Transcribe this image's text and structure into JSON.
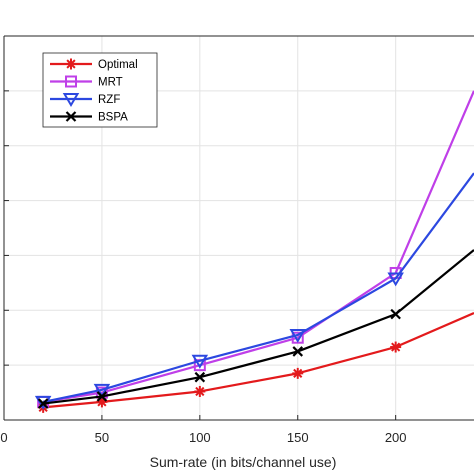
{
  "chart_data": {
    "type": "line",
    "title": "",
    "xlabel": "Sum-rate (in bits/channel use)",
    "ylabel": "",
    "xlim": [
      0,
      240
    ],
    "ylim": [
      0,
      7
    ],
    "xticks": [
      0,
      50,
      100,
      150,
      200
    ],
    "xtick_labels": [
      "0",
      "50",
      "100",
      "150",
      "200"
    ],
    "yticks": [
      0,
      1,
      2,
      3,
      4,
      5,
      6,
      7
    ],
    "grid": true,
    "legend_position": "top-left",
    "x": [
      20,
      50,
      100,
      150,
      200,
      240
    ],
    "series": [
      {
        "name": "Optimal",
        "color": "#e31a1c",
        "marker": "asterisk",
        "values": [
          0.23,
          0.33,
          0.52,
          0.85,
          1.33,
          1.95
        ]
      },
      {
        "name": "MRT",
        "color": "#bf3fe8",
        "marker": "square",
        "values": [
          0.33,
          0.5,
          1.0,
          1.5,
          2.68,
          6.0
        ]
      },
      {
        "name": "RZF",
        "color": "#2c48e0",
        "marker": "triangle-down",
        "values": [
          0.33,
          0.55,
          1.08,
          1.55,
          2.58,
          4.5
        ]
      },
      {
        "name": "BSPA",
        "color": "#000000",
        "marker": "x",
        "values": [
          0.3,
          0.43,
          0.78,
          1.25,
          1.93,
          3.1
        ]
      }
    ]
  }
}
